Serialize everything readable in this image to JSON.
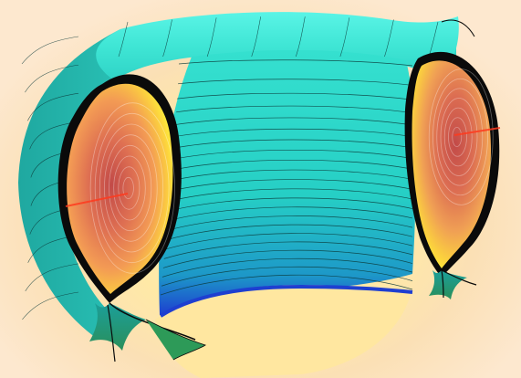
{
  "scene": {
    "description_colors": {
      "background_center": "#fff3c6",
      "background_edge": "#fde8cf",
      "torus_surface_light": "#49f0dc",
      "torus_surface_mid": "#26d2c4",
      "torus_surface_dark": "#1aa5a0",
      "inner_wall_blue": "#1e5fd6",
      "cross_section_core": "#c8584a",
      "cross_section_mid": "#f09050",
      "cross_section_edge": "#ffe83a",
      "separatrix_black": "#0a0a0a",
      "divertor_green": "#2b9a58"
    },
    "icons": [
      "torus-mesh-render"
    ]
  }
}
